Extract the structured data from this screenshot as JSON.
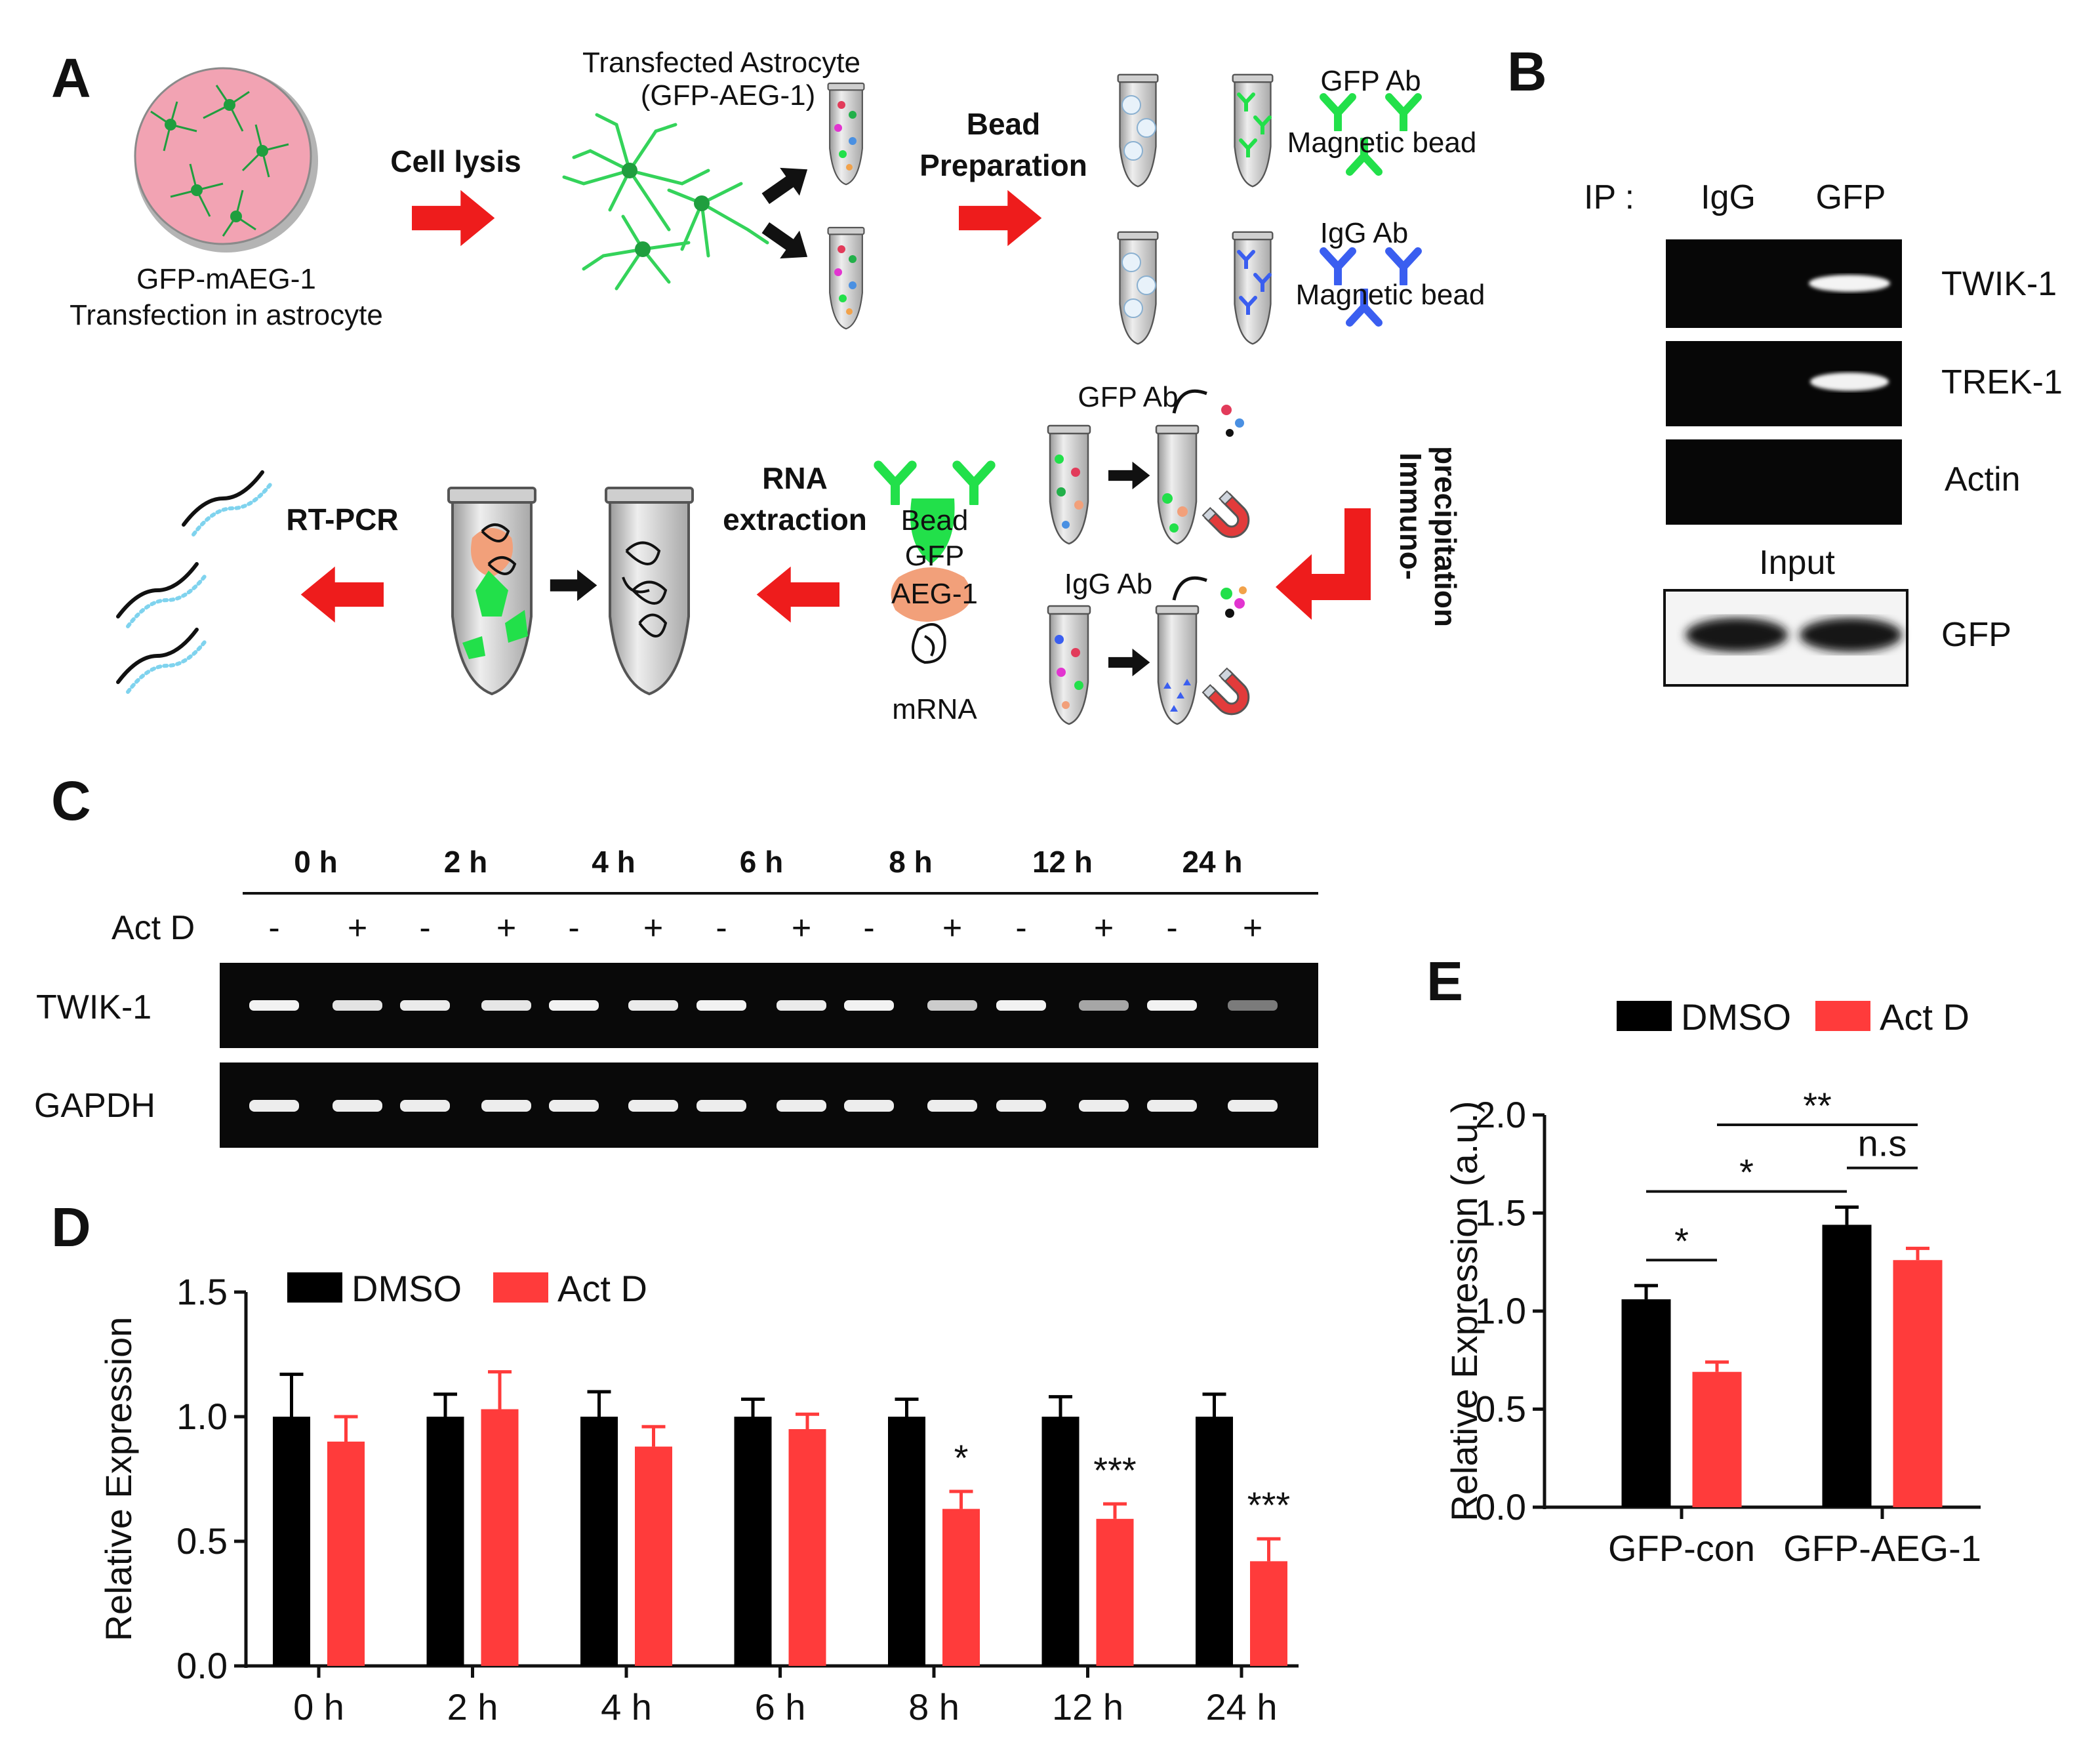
{
  "panels": [
    "A",
    "B",
    "C",
    "D",
    "E"
  ],
  "colors": {
    "dmso": "#000000",
    "actd": "#ff3b3b",
    "arrow": "#ee1c1c",
    "gfp_green": "#22e04a",
    "igg_blue": "#3a5ef0",
    "dish": "#f2a3b3"
  },
  "panel_a": {
    "dish_label_1": "GFP-mAEG-1",
    "dish_label_2": "Transfection in astrocyte",
    "cell_lysis": "Cell lysis",
    "astro_label_1": "Transfected Astrocyte",
    "astro_label_2": "(GFP-AEG-1)",
    "bead_prep_1": "Bead",
    "bead_prep_2": "Preparation",
    "gfp_ab": "GFP Ab",
    "magnetic_bead_1": "Magnetic  bead",
    "igg_ab": "IgG  Ab",
    "magnetic_bead_2": "Magnetic   bead",
    "ip_label_1": "Immuno-",
    "ip_label_2": "precipitation",
    "gfp_ab_2": "GFP Ab",
    "igg_ab_2": "IgG  Ab",
    "complex_bead": "Bead",
    "complex_gfp": "GFP",
    "complex_aeg": "AEG-1",
    "complex_mrna": "mRNA",
    "rna_extraction_1": "RNA",
    "rna_extraction_2": "extraction",
    "rt_pcr": "RT-PCR"
  },
  "panel_b": {
    "ip_label": "IP :",
    "lanes": [
      "IgG",
      "GFP"
    ],
    "bands": [
      "TWIK-1",
      "TREK-1",
      "Actin"
    ],
    "input_label": "Input",
    "input_band": "GFP"
  },
  "panel_c": {
    "timepoints": [
      "0 h",
      "2 h",
      "4 h",
      "6 h",
      "8 h",
      "12 h",
      "24 h"
    ],
    "treatment_label": "Act D",
    "signs": [
      "-",
      "+"
    ],
    "rows": [
      "TWIK-1",
      "GAPDH"
    ]
  },
  "chart_data": [
    {
      "panel": "D",
      "type": "bar",
      "categories": [
        "0 h",
        "2 h",
        "4 h",
        "6 h",
        "8 h",
        "12 h",
        "24 h"
      ],
      "series": [
        {
          "name": "DMSO",
          "values": [
            1.0,
            1.0,
            1.0,
            1.0,
            1.0,
            1.0,
            1.0
          ],
          "errors": [
            0.17,
            0.09,
            0.1,
            0.07,
            0.07,
            0.08,
            0.09
          ]
        },
        {
          "name": "Act D",
          "values": [
            0.9,
            1.03,
            0.88,
            0.95,
            0.63,
            0.59,
            0.42
          ],
          "errors": [
            0.1,
            0.15,
            0.08,
            0.06,
            0.07,
            0.06,
            0.09
          ]
        }
      ],
      "significance": [
        "",
        "",
        "",
        "",
        "*",
        "***",
        "***"
      ],
      "ylabel": "Relative Expression",
      "ylim": [
        0,
        1.5
      ],
      "yticks": [
        "0.0",
        "0.5",
        "1.0",
        "1.5"
      ],
      "legend": "top-left"
    },
    {
      "panel": "E",
      "type": "bar",
      "categories": [
        "GFP-con",
        "GFP-AEG-1"
      ],
      "series": [
        {
          "name": "DMSO",
          "values": [
            1.06,
            1.44
          ],
          "errors": [
            0.07,
            0.09
          ]
        },
        {
          "name": "Act D",
          "values": [
            0.69,
            1.26
          ],
          "errors": [
            0.05,
            0.06
          ]
        }
      ],
      "comparisons": [
        {
          "label": "*",
          "from": "GFP-con DMSO",
          "to": "GFP-con Act D"
        },
        {
          "label": "*",
          "from": "GFP-con DMSO",
          "to": "GFP-AEG-1 DMSO"
        },
        {
          "label": "n.s",
          "from": "GFP-AEG-1 DMSO",
          "to": "GFP-AEG-1 Act D"
        },
        {
          "label": "**",
          "from": "GFP-con Act D",
          "to": "GFP-AEG-1 Act D"
        }
      ],
      "ylabel": "Relative Expression (a.u.)",
      "ylim": [
        0,
        2.0
      ],
      "yticks": [
        "0.0",
        "0.5",
        "1.0",
        "1.5",
        "2.0"
      ],
      "legend": "top"
    }
  ]
}
